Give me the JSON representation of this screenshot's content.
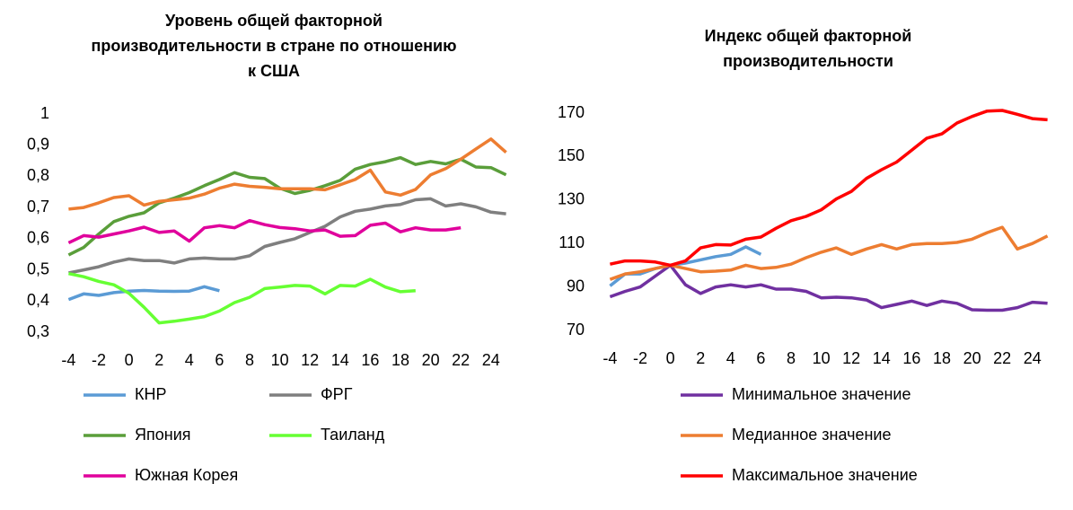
{
  "chart_data": [
    {
      "type": "line",
      "title": "Уровень общей факторной производительности в стране по отношению к США",
      "x": [
        -4,
        -3,
        -2,
        -1,
        0,
        1,
        2,
        3,
        4,
        5,
        6,
        7,
        8,
        9,
        10,
        11,
        12,
        13,
        14,
        15,
        16,
        17,
        18,
        19,
        20,
        21,
        22,
        23,
        24,
        25
      ],
      "xlim": [
        -4.5,
        25.5
      ],
      "xticks": [
        -4,
        -2,
        0,
        2,
        4,
        6,
        8,
        10,
        12,
        14,
        16,
        18,
        20,
        22,
        24
      ],
      "ylim": [
        0.3,
        1
      ],
      "yticks": [
        {
          "value": 0.3,
          "label": "0,3"
        },
        {
          "value": 0.4,
          "label": "0,4"
        },
        {
          "value": 0.5,
          "label": "0,5"
        },
        {
          "value": 0.6,
          "label": "0,6"
        },
        {
          "value": 0.7,
          "label": "0,7"
        },
        {
          "value": 0.8,
          "label": "0,8"
        },
        {
          "value": 0.9,
          "label": "0,9"
        },
        1
      ],
      "series": [
        {
          "name": "КНР",
          "color": "#5b9bd5",
          "values": [
            0.405,
            0.423,
            0.418,
            0.427,
            0.432,
            0.434,
            0.432,
            0.431,
            0.432,
            0.446,
            0.433,
            null,
            null,
            null,
            null,
            null,
            null,
            null,
            null,
            null,
            null,
            null,
            null,
            null,
            null,
            null,
            null,
            null,
            null,
            null
          ]
        },
        {
          "name": "ФРГ",
          "color": "#7f7f7f",
          "values": [
            0.49,
            0.5,
            0.51,
            0.525,
            0.535,
            0.53,
            0.53,
            0.522,
            0.535,
            0.538,
            0.535,
            0.535,
            0.545,
            0.575,
            0.588,
            0.6,
            0.62,
            0.64,
            0.67,
            0.688,
            0.695,
            0.705,
            0.71,
            0.725,
            0.728,
            0.705,
            0.712,
            0.702,
            0.685,
            0.68
          ]
        },
        {
          "name": "Япония",
          "color": "#5a9e3a",
          "values": [
            0.548,
            0.572,
            0.615,
            0.655,
            0.672,
            0.683,
            0.715,
            0.73,
            0.748,
            0.77,
            0.79,
            0.812,
            0.797,
            0.793,
            0.762,
            0.745,
            0.755,
            0.77,
            0.787,
            0.823,
            0.838,
            0.847,
            0.86,
            0.838,
            0.848,
            0.84,
            0.855,
            0.83,
            0.828,
            0.805
          ]
        },
        {
          "name": "Таиланд",
          "color": "#66ff33",
          "values": [
            0.488,
            0.478,
            0.463,
            0.452,
            0.425,
            0.38,
            0.33,
            0.335,
            0.342,
            0.35,
            0.368,
            0.395,
            0.412,
            0.44,
            0.445,
            0.45,
            0.448,
            0.423,
            0.45,
            0.448,
            0.47,
            0.445,
            0.43,
            0.433,
            null,
            null,
            null,
            null,
            null,
            null
          ]
        },
        {
          "name": "Южная Корея",
          "color": "#e0009c",
          "values": [
            0.587,
            0.61,
            0.605,
            0.615,
            0.625,
            0.637,
            0.62,
            0.625,
            0.592,
            0.635,
            0.642,
            0.635,
            0.658,
            0.645,
            0.636,
            0.632,
            0.625,
            0.628,
            0.608,
            0.61,
            0.643,
            0.65,
            0.622,
            0.635,
            0.628,
            0.628,
            0.635,
            null,
            null,
            null
          ]
        },
        {
          "color": "#ed7d31",
          "values": [
            0.695,
            0.7,
            0.715,
            0.732,
            0.738,
            0.708,
            0.72,
            0.725,
            0.73,
            0.743,
            0.762,
            0.775,
            0.768,
            0.765,
            0.76,
            0.76,
            0.76,
            0.757,
            0.773,
            0.79,
            0.82,
            0.75,
            0.74,
            0.758,
            0.805,
            0.825,
            0.855,
            0.888,
            0.92,
            0.877
          ]
        }
      ]
    },
    {
      "type": "line",
      "title": "Индекс общей факторной производительности",
      "x": [
        -4,
        -3,
        -2,
        -1,
        0,
        1,
        2,
        3,
        4,
        5,
        6,
        7,
        8,
        9,
        10,
        11,
        12,
        13,
        14,
        15,
        16,
        17,
        18,
        19,
        20,
        21,
        22,
        23,
        24,
        25
      ],
      "xlim": [
        -4.5,
        25.5
      ],
      "xticks": [
        -4,
        -2,
        0,
        2,
        4,
        6,
        8,
        10,
        12,
        14,
        16,
        18,
        20,
        22,
        24
      ],
      "ylim": [
        70,
        175
      ],
      "yticks": [
        70,
        90,
        110,
        130,
        150,
        170
      ],
      "series": [
        {
          "color": "#5b9bd5",
          "values": [
            90.5,
            96,
            96,
            98.5,
            100,
            101,
            102.5,
            104,
            105,
            108.5,
            105,
            null,
            null,
            null,
            null,
            null,
            null,
            null,
            null,
            null,
            null,
            null,
            null,
            null,
            null,
            null,
            null,
            null,
            null,
            null
          ]
        },
        {
          "name": "Минимальное значение",
          "color": "#7030a0",
          "values": [
            85.5,
            88,
            90,
            95,
            100,
            91,
            87,
            90,
            91,
            90,
            91,
            89,
            89,
            88,
            85,
            85.3,
            85,
            84,
            80.5,
            82,
            83.5,
            81.5,
            83.5,
            82.5,
            79.5,
            79.3,
            79.3,
            80.5,
            83,
            82.5
          ]
        },
        {
          "name": "Медианное значение",
          "color": "#ed7d31",
          "values": [
            93.5,
            96,
            97,
            98.5,
            100,
            98.5,
            97,
            97.3,
            97.8,
            100,
            98.5,
            99,
            100.5,
            103.5,
            106,
            108,
            105,
            107.5,
            109.5,
            107.5,
            109.5,
            110,
            110,
            110.5,
            112,
            115,
            117.5,
            107.5,
            110,
            113.5
          ]
        },
        {
          "name": "Максимальное значение",
          "color": "#ff0000",
          "values": [
            100.5,
            102,
            102,
            101.5,
            100,
            102,
            108,
            109.5,
            109.3,
            112,
            113,
            117,
            120.5,
            122.5,
            125.5,
            130.5,
            134,
            140,
            144,
            147.5,
            153,
            158.5,
            160.5,
            165.5,
            168.5,
            171,
            171.3,
            169.5,
            167.5,
            167
          ]
        }
      ]
    }
  ]
}
